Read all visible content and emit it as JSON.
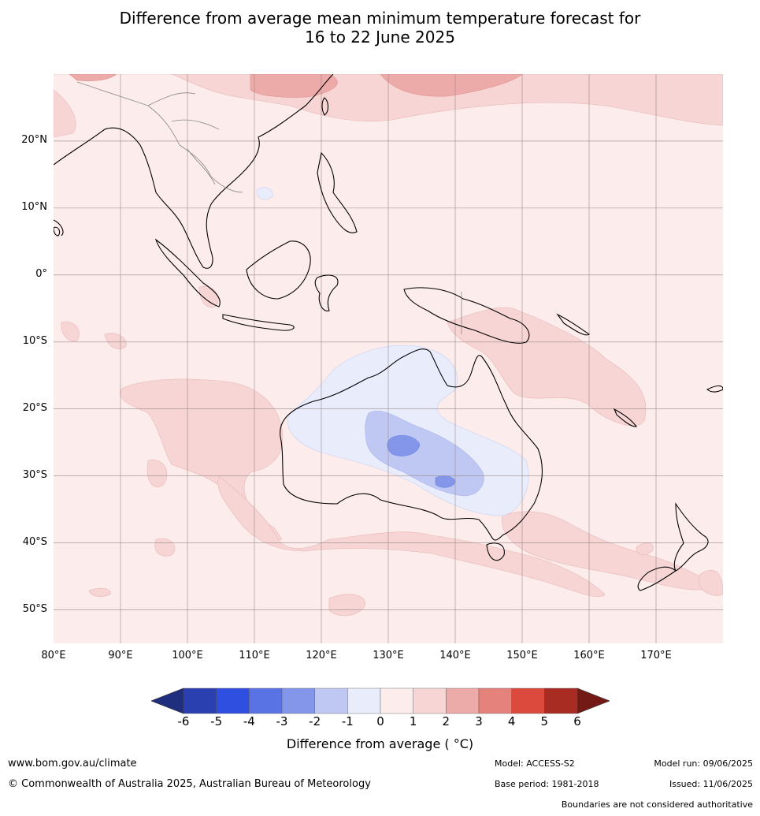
{
  "title": {
    "line1": "Difference from average mean minimum temperature forecast for",
    "line2": "16 to 22 June 2025"
  },
  "axes": {
    "lat_labels": [
      "20°N",
      "10°N",
      "0°",
      "10°S",
      "20°S",
      "30°S",
      "40°S",
      "50°S"
    ],
    "lon_labels": [
      "80°E",
      "90°E",
      "100°E",
      "110°E",
      "120°E",
      "130°E",
      "140°E",
      "150°E",
      "160°E",
      "170°E"
    ],
    "lat_range": [
      -55,
      30
    ],
    "lon_range": [
      80,
      180
    ],
    "grid": true
  },
  "colorbar": {
    "ticks": [
      "-6",
      "-5",
      "-4",
      "-3",
      "-2",
      "-1",
      "0",
      "1",
      "2",
      "3",
      "4",
      "5",
      "6"
    ],
    "colors": [
      "#1f2f7e",
      "#2a40b0",
      "#2f4fe0",
      "#5a73e4",
      "#8496ea",
      "#bfc8f3",
      "#e8ecfb",
      "#fceceb",
      "#f6d5d4",
      "#ecaaa8",
      "#e5827b",
      "#db4a3d",
      "#a92c22",
      "#731a16"
    ],
    "label": "Difference from average ( °C)"
  },
  "footer": {
    "website": "www.bom.gov.au/climate",
    "copyright": "© Commonwealth of Australia 2025, Australian Bureau of Meteorology",
    "model": "Model: ACCESS-S2",
    "base_period": "Base period: 1981-2018",
    "model_run": "Model run: 09/06/2025",
    "issued": "Issued: 11/06/2025",
    "disclaimer": "Boundaries are not considered authoritative"
  }
}
